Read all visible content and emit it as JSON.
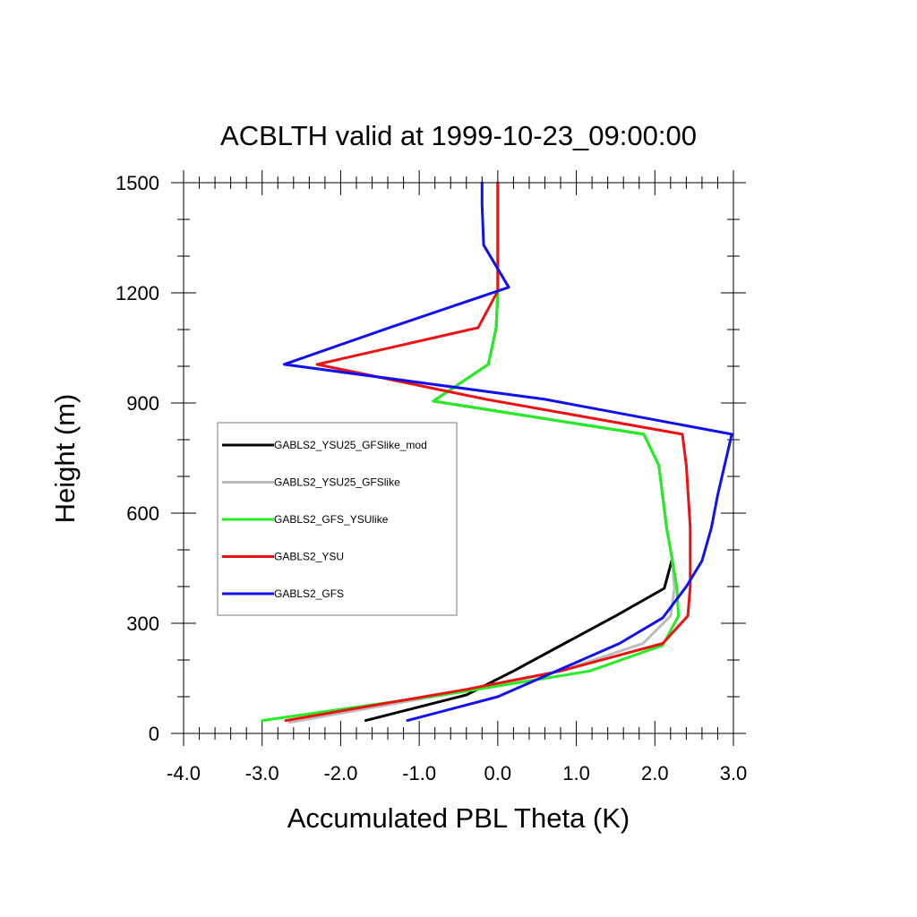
{
  "chart_data": {
    "type": "line",
    "title": "ACBLTH valid at 1999-10-23_09:00:00",
    "xlabel": "Accumulated PBL Theta (K)",
    "ylabel": "Height (m)",
    "xlim": [
      -4.0,
      3.0
    ],
    "ylim": [
      0,
      1500
    ],
    "x_ticks": [
      -4.0,
      -3.0,
      -2.0,
      -1.0,
      0.0,
      1.0,
      2.0,
      3.0
    ],
    "x_tick_labels": [
      "-4.0",
      "-3.0",
      "-2.0",
      "-1.0",
      "0.0",
      "1.0",
      "2.0",
      "3.0"
    ],
    "y_ticks": [
      0,
      300,
      600,
      900,
      1200,
      1500
    ],
    "y_tick_labels": [
      "0",
      "300",
      "600",
      "900",
      "1200",
      "1500"
    ],
    "grid": false,
    "legend_position": "middle-left",
    "series": [
      {
        "name": "GABLS2_YSU25_GFSlike_mod",
        "color": "#000000",
        "points": [
          [
            -1.68,
            35
          ],
          [
            -0.4,
            105
          ],
          [
            0.2,
            170
          ],
          [
            0.85,
            245
          ],
          [
            1.5,
            320
          ],
          [
            2.12,
            395
          ],
          [
            2.22,
            475
          ],
          [
            2.15,
            560
          ],
          [
            2.05,
            730
          ],
          [
            1.86,
            815
          ],
          [
            -0.82,
            905
          ],
          [
            -0.12,
            1005
          ],
          [
            -0.02,
            1105
          ],
          [
            0.0,
            1205
          ],
          [
            0.0,
            1500
          ]
        ]
      },
      {
        "name": "GABLS2_YSU25_GFSlike",
        "color": "#bbbbbb",
        "points": [
          [
            -2.65,
            30
          ],
          [
            -0.3,
            120
          ],
          [
            0.8,
            170
          ],
          [
            1.85,
            245
          ],
          [
            2.2,
            320
          ],
          [
            2.25,
            395
          ],
          [
            2.22,
            475
          ],
          [
            2.15,
            560
          ],
          [
            2.05,
            730
          ],
          [
            1.86,
            815
          ],
          [
            -0.82,
            905
          ],
          [
            -0.12,
            1005
          ],
          [
            -0.02,
            1105
          ],
          [
            0.0,
            1205
          ],
          [
            0.0,
            1500
          ]
        ]
      },
      {
        "name": "GABLS2_GFS_YSUlike",
        "color": "#22ee22",
        "points": [
          [
            -3.0,
            35
          ],
          [
            -0.55,
            110
          ],
          [
            1.17,
            170
          ],
          [
            2.1,
            240
          ],
          [
            2.3,
            320
          ],
          [
            2.28,
            400
          ],
          [
            2.22,
            475
          ],
          [
            2.15,
            560
          ],
          [
            2.05,
            730
          ],
          [
            1.86,
            815
          ],
          [
            -0.82,
            905
          ],
          [
            -0.12,
            1005
          ],
          [
            -0.02,
            1105
          ],
          [
            0.0,
            1205
          ],
          [
            0.0,
            1500
          ]
        ]
      },
      {
        "name": "GABLS2_YSU",
        "color": "#ee1111",
        "points": [
          [
            -2.7,
            35
          ],
          [
            -0.4,
            120
          ],
          [
            0.8,
            170
          ],
          [
            2.1,
            245
          ],
          [
            2.42,
            320
          ],
          [
            2.45,
            400
          ],
          [
            2.45,
            560
          ],
          [
            2.4,
            730
          ],
          [
            2.35,
            815
          ],
          [
            -0.15,
            910
          ],
          [
            -2.3,
            1005
          ],
          [
            -0.25,
            1105
          ],
          [
            0.0,
            1205
          ],
          [
            0.0,
            1500
          ]
        ]
      },
      {
        "name": "GABLS2_GFS",
        "color": "#1111ee",
        "points": [
          [
            -1.15,
            35
          ],
          [
            0.0,
            100
          ],
          [
            1.55,
            245
          ],
          [
            2.1,
            315
          ],
          [
            2.4,
            400
          ],
          [
            2.6,
            470
          ],
          [
            2.72,
            560
          ],
          [
            2.8,
            650
          ],
          [
            2.98,
            815
          ],
          [
            0.6,
            910
          ],
          [
            -2.72,
            1005
          ],
          [
            -1.38,
            1105
          ],
          [
            0.14,
            1215
          ],
          [
            -0.18,
            1330
          ],
          [
            -0.2,
            1440
          ],
          [
            -0.2,
            1500
          ]
        ]
      }
    ]
  }
}
